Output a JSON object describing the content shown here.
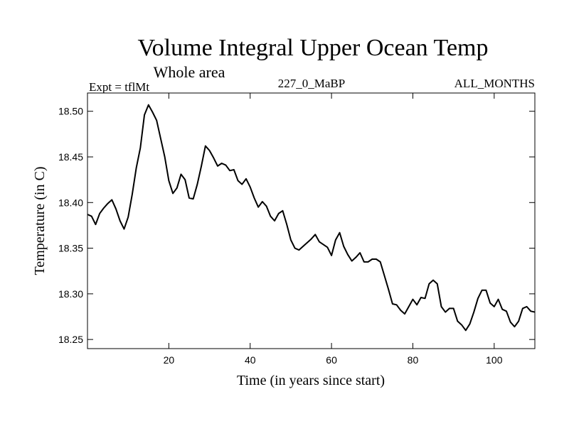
{
  "chart_data": {
    "type": "line",
    "title": "Volume Integral Upper Ocean Temp",
    "subtitle": "Whole area",
    "left_note": "Expt = tflMt",
    "center_note": "227_0_MaBP",
    "right_note": "ALL_MONTHS",
    "xlabel": "Time (in years since start)",
    "ylabel": "Temperature (in C)",
    "xlim": [
      0,
      110
    ],
    "ylim": [
      18.24,
      18.52
    ],
    "x_ticks": [
      20,
      40,
      60,
      80,
      100
    ],
    "x_tick_labels": [
      "20",
      "40",
      "60",
      "80",
      "100"
    ],
    "y_ticks": [
      18.25,
      18.3,
      18.35,
      18.4,
      18.45,
      18.5
    ],
    "y_tick_labels": [
      "18.25",
      "18.30",
      "18.35",
      "18.40",
      "18.45",
      "18.50"
    ],
    "grid": false,
    "series": [
      {
        "name": "Temperature",
        "x": [
          0,
          1,
          2,
          3,
          4,
          5,
          6,
          7,
          8,
          9,
          10,
          11,
          12,
          13,
          14,
          15,
          16,
          17,
          18,
          19,
          20,
          21,
          22,
          23,
          24,
          25,
          26,
          27,
          28,
          29,
          30,
          31,
          32,
          33,
          34,
          35,
          36,
          37,
          38,
          39,
          40,
          41,
          42,
          43,
          44,
          45,
          46,
          47,
          48,
          49,
          50,
          51,
          52,
          53,
          54,
          55,
          56,
          57,
          58,
          59,
          60,
          61,
          62,
          63,
          64,
          65,
          66,
          67,
          68,
          69,
          70,
          71,
          72,
          73,
          74,
          75,
          76,
          77,
          78,
          79,
          80,
          81,
          82,
          83,
          84,
          85,
          86,
          87,
          88,
          89,
          90,
          91,
          92,
          93,
          94,
          95,
          96,
          97,
          98,
          99,
          100,
          101,
          102,
          103,
          104,
          105,
          106,
          107,
          108,
          109,
          110
        ],
        "values": [
          18.387,
          18.385,
          18.376,
          18.388,
          18.394,
          18.399,
          18.403,
          18.393,
          18.38,
          18.371,
          18.384,
          18.409,
          18.438,
          18.46,
          18.496,
          18.507,
          18.499,
          18.49,
          18.47,
          18.45,
          18.424,
          18.41,
          18.416,
          18.431,
          18.425,
          18.405,
          18.404,
          18.42,
          18.44,
          18.462,
          18.457,
          18.449,
          18.44,
          18.443,
          18.441,
          18.435,
          18.436,
          18.424,
          18.42,
          18.426,
          18.417,
          18.405,
          18.395,
          18.401,
          18.396,
          18.385,
          18.38,
          18.388,
          18.391,
          18.376,
          18.359,
          18.35,
          18.348,
          18.352,
          18.356,
          18.36,
          18.365,
          18.357,
          18.354,
          18.351,
          18.342,
          18.359,
          18.367,
          18.352,
          18.343,
          18.336,
          18.34,
          18.345,
          18.335,
          18.335,
          18.338,
          18.338,
          18.335,
          18.32,
          18.305,
          18.289,
          18.288,
          18.282,
          18.278,
          18.286,
          18.294,
          18.288,
          18.296,
          18.295,
          18.311,
          18.315,
          18.311,
          18.286,
          18.28,
          18.284,
          18.284,
          18.27,
          18.266,
          18.26,
          18.267,
          18.28,
          18.295,
          18.304,
          18.304,
          18.29,
          18.286,
          18.294,
          18.283,
          18.281,
          18.269,
          18.264,
          18.27,
          18.284,
          18.286,
          18.281,
          18.28
        ]
      }
    ]
  }
}
